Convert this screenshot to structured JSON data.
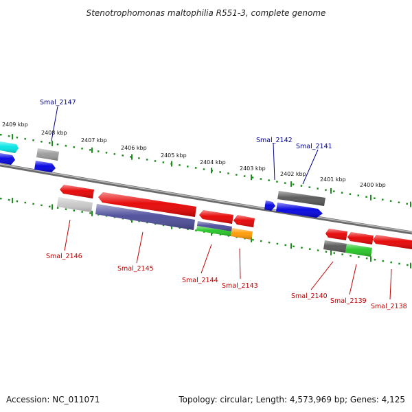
{
  "title": "Stenotrophomonas maltophilia R551-3, complete genome",
  "footer": {
    "accession": "Accession: NC_011071",
    "summary": "Topology: circular; Length: 4,573,969 bp; Genes: 4,125"
  },
  "colors": {
    "backbone": "#8a8a8a",
    "tick_track": "#1e8c1e",
    "label_blue": "#00008b",
    "label_red": "#c00000",
    "red": "#e60000",
    "blue": "#0000e0",
    "cyan": "#00e5e5",
    "gray": "#9a9a9a",
    "dark_gray": "#555555",
    "light_gray": "#c8c8c8",
    "purple": "#4b4b9a",
    "green": "#22c422",
    "orange": "#ff9900"
  },
  "scale_labels": [
    "2409 kbp",
    "2408 kbp",
    "2407 kbp",
    "2406 kbp",
    "2405 kbp",
    "2404 kbp",
    "2403 kbp",
    "2402 kbp",
    "2401 kbp",
    "2400 kbp"
  ],
  "gene_labels": {
    "top": [
      "Smal_2147",
      "Smal_2142",
      "Smal_2141"
    ],
    "bottom": [
      "Smal_2146",
      "Smal_2145",
      "Smal_2144",
      "Smal_2143",
      "Smal_2140",
      "Smal_2139",
      "Smal_2138"
    ]
  }
}
